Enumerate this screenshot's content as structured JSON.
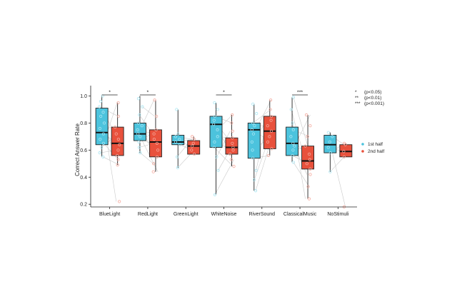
{
  "chart_data": {
    "type": "box",
    "ylabel": "Correct Answer Rate",
    "xlabel": "",
    "ylim": [
      0.18,
      1.05
    ],
    "yticks": [
      0.2,
      0.4,
      0.6,
      0.8,
      1.0
    ],
    "ytick_labels": [
      "0.2",
      "0.4",
      "0.6",
      "0.8",
      "1.0"
    ],
    "categories": [
      "BlueLight",
      "RedLight",
      "GreenLight",
      "WhiteNoise",
      "RiverSound",
      "ClassicalMusic",
      "NoStimuli"
    ],
    "series": [
      {
        "name": "1st half",
        "color": "#4cc3dd",
        "boxes": [
          {
            "min": 0.55,
            "q1": 0.64,
            "median": 0.73,
            "q3": 0.91,
            "max": 1.0,
            "points": [
              0.55,
              0.58,
              0.62,
              0.65,
              0.68,
              0.72,
              0.76,
              0.8,
              0.85,
              0.88,
              0.92,
              0.96,
              1.0
            ]
          },
          {
            "min": 0.58,
            "q1": 0.67,
            "median": 0.72,
            "q3": 0.8,
            "max": 1.0,
            "points": [
              0.58,
              0.62,
              0.66,
              0.7,
              0.72,
              0.75,
              0.78,
              0.8,
              0.86,
              0.92,
              0.98
            ]
          },
          {
            "min": 0.47,
            "q1": 0.64,
            "median": 0.66,
            "q3": 0.71,
            "max": 0.9,
            "points": [
              0.47,
              0.55,
              0.64,
              0.66,
              0.68,
              0.7,
              0.72,
              0.9
            ]
          },
          {
            "min": 0.27,
            "q1": 0.62,
            "median": 0.79,
            "q3": 0.85,
            "max": 0.95,
            "points": [
              0.27,
              0.45,
              0.55,
              0.62,
              0.66,
              0.7,
              0.75,
              0.79,
              0.82,
              0.85,
              0.9,
              0.95
            ]
          },
          {
            "min": 0.3,
            "q1": 0.54,
            "median": 0.75,
            "q3": 0.8,
            "max": 0.94,
            "points": [
              0.3,
              0.38,
              0.45,
              0.54,
              0.6,
              0.66,
              0.72,
              0.75,
              0.78,
              0.8,
              0.87,
              0.94
            ]
          },
          {
            "min": 0.51,
            "q1": 0.56,
            "median": 0.65,
            "q3": 0.77,
            "max": 0.99,
            "points": [
              0.51,
              0.56,
              0.6,
              0.63,
              0.65,
              0.7,
              0.75,
              0.8,
              0.9,
              0.99
            ]
          },
          {
            "min": 0.44,
            "q1": 0.58,
            "median": 0.64,
            "q3": 0.71,
            "max": 0.73,
            "points": [
              0.44,
              0.58,
              0.62,
              0.66,
              0.7,
              0.73
            ]
          }
        ]
      },
      {
        "name": "2nd half",
        "color": "#e8513c",
        "boxes": [
          {
            "min": 0.49,
            "q1": 0.56,
            "median": 0.65,
            "q3": 0.77,
            "max": 0.95,
            "points": [
              0.22,
              0.49,
              0.53,
              0.56,
              0.6,
              0.64,
              0.68,
              0.72,
              0.77,
              0.85,
              0.95
            ]
          },
          {
            "min": 0.44,
            "q1": 0.55,
            "median": 0.66,
            "q3": 0.75,
            "max": 0.97,
            "points": [
              0.44,
              0.5,
              0.55,
              0.6,
              0.65,
              0.68,
              0.72,
              0.75,
              0.85,
              0.97
            ]
          },
          {
            "min": 0.57,
            "q1": 0.57,
            "median": 0.63,
            "q3": 0.67,
            "max": 0.7,
            "points": [
              0.57,
              0.6,
              0.63,
              0.65,
              0.68,
              0.7
            ]
          },
          {
            "min": 0.48,
            "q1": 0.57,
            "median": 0.62,
            "q3": 0.69,
            "max": 0.86,
            "points": [
              0.48,
              0.53,
              0.57,
              0.6,
              0.62,
              0.65,
              0.69,
              0.74,
              0.8,
              0.86
            ]
          },
          {
            "min": 0.56,
            "q1": 0.61,
            "median": 0.74,
            "q3": 0.85,
            "max": 0.97,
            "points": [
              0.56,
              0.61,
              0.66,
              0.7,
              0.74,
              0.78,
              0.82,
              0.85,
              0.9,
              0.97
            ]
          },
          {
            "min": 0.24,
            "q1": 0.46,
            "median": 0.52,
            "q3": 0.63,
            "max": 0.86,
            "points": [
              0.24,
              0.33,
              0.42,
              0.46,
              0.5,
              0.53,
              0.57,
              0.63,
              0.7,
              0.78,
              0.86
            ]
          },
          {
            "min": 0.55,
            "q1": 0.55,
            "median": 0.59,
            "q3": 0.64,
            "max": 0.65,
            "points": [
              0.18,
              0.55,
              0.59,
              0.64,
              0.65
            ]
          }
        ]
      }
    ],
    "significance": [
      {
        "category_index": 0,
        "label": "*"
      },
      {
        "category_index": 1,
        "label": "*"
      },
      {
        "category_index": 3,
        "label": "*"
      },
      {
        "category_index": 5,
        "label": "***"
      }
    ],
    "significance_legend": [
      {
        "symbol": "*",
        "text": "(p<0.05)"
      },
      {
        "symbol": "**",
        "text": "(p<0.01)"
      },
      {
        "symbol": "***",
        "text": "(p<0.001)"
      }
    ],
    "legend": {
      "position": "right",
      "entries": [
        "1st half",
        "2nd half"
      ]
    },
    "grid": false
  }
}
